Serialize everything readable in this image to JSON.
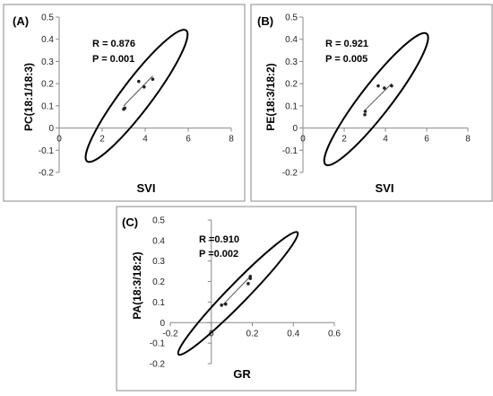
{
  "chart_data": [
    {
      "type": "scatter",
      "panel_label": "(A)",
      "xlabel": "SVI",
      "ylabel": "PC(18:1/18:3)",
      "annotations": [
        "R = 0.876",
        "P = 0.001"
      ],
      "xlim": [
        0,
        8
      ],
      "ylim": [
        -0.2,
        0.5
      ],
      "x_ticks": [
        0,
        2,
        4,
        6,
        8
      ],
      "x_tick_labels": [
        "0",
        "2",
        "4",
        "6",
        "8"
      ],
      "y_ticks": [
        -0.2,
        -0.1,
        0,
        0.1,
        0.2,
        0.3,
        0.4,
        0.5
      ],
      "y_tick_labels": [
        "-0.2",
        "-0.1",
        "0",
        "0.1",
        "0.2",
        "0.3",
        "0.4",
        "0.5"
      ],
      "grid": false,
      "points": [
        {
          "x": 3.0,
          "y": 0.085
        },
        {
          "x": 3.05,
          "y": 0.09
        },
        {
          "x": 3.7,
          "y": 0.21
        },
        {
          "x": 3.95,
          "y": 0.185
        },
        {
          "x": 4.35,
          "y": 0.22
        }
      ],
      "fit_line": [
        [
          3.0,
          0.1
        ],
        [
          4.35,
          0.235
        ]
      ],
      "ellipse": [
        [
          1.3,
          -0.15
        ],
        [
          5.9,
          0.44
        ]
      ]
    },
    {
      "type": "scatter",
      "panel_label": "(B)",
      "xlabel": "SVI",
      "ylabel": "PE(18:3/18:2)",
      "annotations": [
        "R = 0.921",
        "P = 0.005"
      ],
      "xlim": [
        0,
        8
      ],
      "ylim": [
        -0.2,
        0.5
      ],
      "x_ticks": [
        0,
        2,
        4,
        6,
        8
      ],
      "x_tick_labels": [
        "0",
        "2",
        "4",
        "6",
        "8"
      ],
      "y_ticks": [
        -0.2,
        -0.1,
        0,
        0.1,
        0.2,
        0.3,
        0.4,
        0.5
      ],
      "y_tick_labels": [
        "-0.2",
        "-0.1",
        "0",
        "0.1",
        "0.2",
        "0.3",
        "0.4",
        "0.5"
      ],
      "grid": false,
      "points": [
        {
          "x": 3.0,
          "y": 0.06
        },
        {
          "x": 3.02,
          "y": 0.075
        },
        {
          "x": 3.65,
          "y": 0.19
        },
        {
          "x": 3.95,
          "y": 0.18
        },
        {
          "x": 4.3,
          "y": 0.19
        }
      ],
      "fit_line": [
        [
          3.0,
          0.08
        ],
        [
          4.3,
          0.2
        ]
      ],
      "ellipse": [
        [
          1.1,
          -0.165
        ],
        [
          6.0,
          0.425
        ]
      ]
    },
    {
      "type": "scatter",
      "panel_label": "(C)",
      "xlabel": "GR",
      "ylabel": "PA(18:3/18:2)",
      "annotations": [
        "R =0.910",
        "P =0.002"
      ],
      "xlim": [
        -0.2,
        0.6
      ],
      "ylim": [
        -0.2,
        0.5
      ],
      "x_ticks": [
        -0.2,
        0,
        0.2,
        0.4,
        0.6
      ],
      "x_tick_labels": [
        "-0.2",
        "0",
        "0.2",
        "0.4",
        "0.6"
      ],
      "y_ticks": [
        -0.2,
        -0.1,
        0,
        0.1,
        0.2,
        0.3,
        0.4,
        0.5
      ],
      "y_tick_labels": [
        "-0.2",
        "-0.1",
        "0",
        "0.1",
        "0.2",
        "0.3",
        "0.4",
        "0.5"
      ],
      "grid": false,
      "points": [
        {
          "x": 0.05,
          "y": 0.085
        },
        {
          "x": 0.07,
          "y": 0.09
        },
        {
          "x": 0.18,
          "y": 0.19
        },
        {
          "x": 0.19,
          "y": 0.215
        },
        {
          "x": 0.19,
          "y": 0.225
        }
      ],
      "fit_line": [
        [
          0.05,
          0.08
        ],
        [
          0.19,
          0.225
        ]
      ],
      "ellipse": [
        [
          -0.16,
          -0.155
        ],
        [
          0.42,
          0.44
        ]
      ]
    }
  ]
}
